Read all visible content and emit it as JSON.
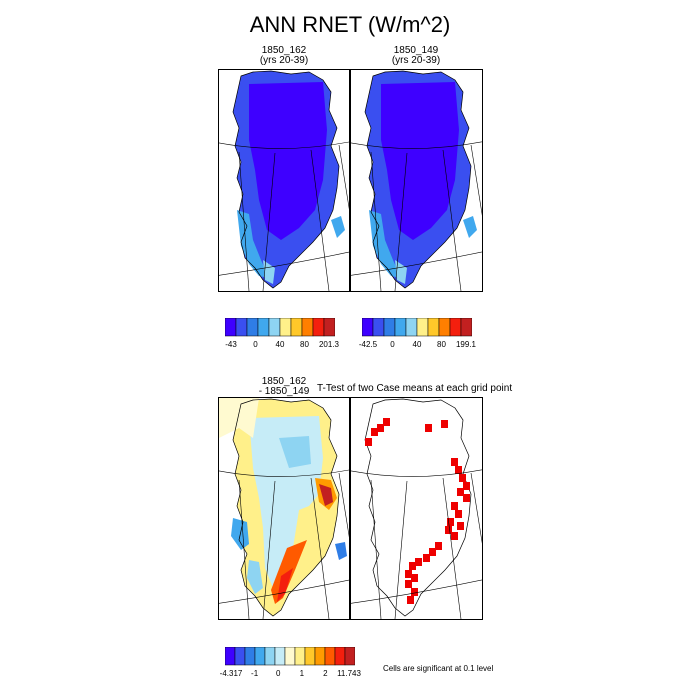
{
  "title": "ANN RNET (W/m^2)",
  "panels": {
    "p1": {
      "title_line1": "1850_162",
      "title_line2": "(yrs 20-39)"
    },
    "p2": {
      "title_line1": "1850_149",
      "title_line2": "(yrs 20-39)"
    },
    "p3": {
      "title_line1": "1850_162",
      "title_line2": "- 1850_149"
    },
    "p4": {
      "title": "T-Test of two Case means at each grid point"
    }
  },
  "note": "Cells are significant at 0.1 level",
  "colors": {
    "abs_scale": [
      "#3e00ff",
      "#3a4ff0",
      "#2f7de6",
      "#40a8ee",
      "#8ed4f2",
      "#fff08a",
      "#ffc82a",
      "#ff7f00",
      "#f41f0e",
      "#c22020"
    ],
    "diff_scale": [
      "#3e00ff",
      "#3a4ff0",
      "#2f7de6",
      "#40a8ee",
      "#8ed4f2",
      "#c6ecf7",
      "#fffad0",
      "#fff08a",
      "#ffc82a",
      "#ff9b00",
      "#ff5a00",
      "#f41f0e",
      "#c22020"
    ],
    "significant": "#ee0000"
  },
  "chart_data": [
    {
      "type": "heatmap",
      "title": "1850_162 (yrs 20-39)",
      "colorbar": {
        "labels": [
          "-43",
          "0",
          "40",
          "80",
          "201.3"
        ],
        "min": -43,
        "max": 201.3
      }
    },
    {
      "type": "heatmap",
      "title": "1850_149 (yrs 20-39)",
      "colorbar": {
        "labels": [
          "-42.5",
          "0",
          "40",
          "80",
          "199.1"
        ],
        "min": -42.5,
        "max": 199.1
      }
    },
    {
      "type": "heatmap",
      "title": "1850_162 - 1850_149",
      "colorbar": {
        "labels": [
          "-4.317",
          "-1",
          "0",
          "1",
          "2",
          "11.743"
        ],
        "min": -4.317,
        "max": 11.743
      }
    },
    {
      "type": "heatmap",
      "title": "T-Test of two Case means at each grid point",
      "note": "Cells are significant at 0.1 level"
    }
  ]
}
